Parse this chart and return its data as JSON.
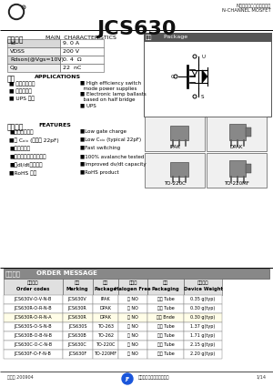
{
  "title": "JCS630",
  "subtitle_cn": "N沟道增强型场效应晶体管",
  "subtitle_en": "N-CHANNEL MOSFET",
  "bg_color": "#ffffff",
  "section_main_cn": "主要参数",
  "section_main_en": "MAIN  CHARACTERISTICS",
  "section_package_cn": "外形",
  "section_package_en": "Package",
  "main_params": [
    [
      "Id",
      "9. 0 A"
    ],
    [
      "VDSS",
      "200 V"
    ],
    [
      "Rdson(@Vgs=10V)",
      "0. 4  Ω"
    ],
    [
      "Qg",
      "22  nC"
    ]
  ],
  "section_app_cn": "用途",
  "section_app_en": "APPLICATIONS",
  "apps_cn": [
    "高效开关电源",
    "电子镇流器",
    "UPS 电源"
  ],
  "apps_en": [
    "High efficiency switch",
    "mode power supplies",
    "Electronic lamp ballasts",
    "based on half bridge",
    "UPS"
  ],
  "section_feat_cn": "产品特性",
  "section_feat_en": "FEATURES",
  "feats_cn": [
    "低栏极总电荷",
    "低 Cₒᵢₓ (典型值 22pF)",
    "快开关速度",
    "产品全部经过雪崩测试",
    "高dI/dt承受能力",
    "RoHS 合格"
  ],
  "feats_en": [
    "Low gate charge",
    "Low Cₒᵢₓ (typical 22pF)",
    "Fast switching",
    "100% avalanche tested",
    "Improved dv/dt capacity",
    "RoHS product"
  ],
  "section_order_cn": "订购信息",
  "section_order_en": "ORDER MESSAGE",
  "order_headers_cn": [
    "订购型号",
    "标记",
    "封装",
    "无卤剂",
    "包装",
    "器件重量"
  ],
  "order_headers_en": [
    "Order codes",
    "Marking",
    "Package",
    "Halogen Free",
    "Packaging",
    "Device Weight"
  ],
  "order_rows": [
    [
      "JCS630V-O-V-N-B",
      "JCS630V",
      "IPAK",
      "否 NO",
      "少量 Tube",
      "0.35 g(typ)"
    ],
    [
      "JCS630R-O-R-N-B",
      "JCS630R",
      "DPAK",
      "否 NO",
      "少量 Tube",
      "0.30 g(typ)"
    ],
    [
      "JCS630R-O-R-N-A",
      "JCS630R",
      "DPAK",
      "否 NO",
      "卷盘 Bnde",
      "0.30 g(typ)"
    ],
    [
      "JCS630S-O-S-N-B",
      "JCS630S",
      "TO-263",
      "否 NO",
      "少量 Tube",
      "1.37 g(typ)"
    ],
    [
      "JCS630B-O-B-N-B",
      "JCS630B",
      "TO-262",
      "否 NO",
      "少量 Tube",
      "1.71 g(typ)"
    ],
    [
      "JCS630C-O-C-N-B",
      "JCS630C",
      "TO-220C",
      "否 NO",
      "少量 Tube",
      "2.15 g(typ)"
    ],
    [
      "JCS630F-O-F-N-B",
      "JCS630F",
      "TO-220MF",
      "否 NO",
      "少量 Tube",
      "2.20 g(typ)"
    ]
  ],
  "footer_left": "版本： 200904",
  "footer_right": "1/14",
  "footer_company": "吉林集成电子股份有限公司"
}
